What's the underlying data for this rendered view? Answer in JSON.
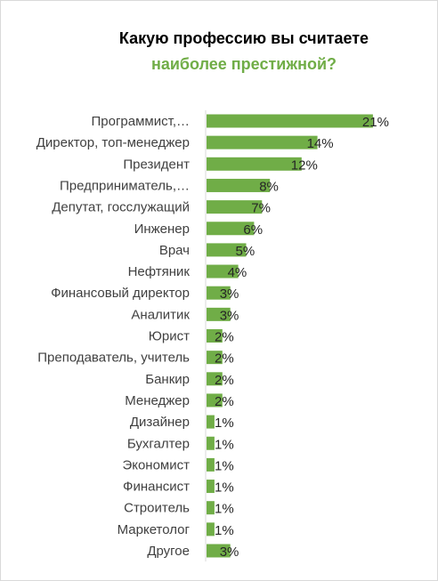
{
  "title": {
    "line1": "Какую профессию вы считаете",
    "line2": "наиболее престижной?"
  },
  "colors": {
    "bar": "#70ad47",
    "title_accent": "#70ad47"
  },
  "chart_data": {
    "type": "bar",
    "orientation": "horizontal",
    "title": "Какую профессию вы считаете наиболее престижной?",
    "categories": [
      "Программист,…",
      "Директор, топ-менеджер",
      "Президент",
      "Предприниматель,…",
      "Депутат, госслужащий",
      "Инженер",
      "Врач",
      "Нефтяник",
      "Финансовый директор",
      "Аналитик",
      "Юрист",
      "Преподаватель, учитель",
      "Банкир",
      "Менеджер",
      "Дизайнер",
      "Бухгалтер",
      "Экономист",
      "Финансист",
      "Строитель",
      "Маркетолог",
      "Другое"
    ],
    "series": [
      {
        "values": [
          21,
          14,
          12,
          8,
          7,
          6,
          5,
          4,
          3,
          3,
          2,
          2,
          2,
          2,
          1,
          1,
          1,
          1,
          1,
          1,
          3
        ],
        "labels": [
          "21%",
          "14%",
          "12%",
          "8%",
          "7%",
          "6%",
          "5%",
          "4%",
          "3%",
          "3%",
          "2%",
          "2%",
          "2%",
          "2%",
          "1%",
          "1%",
          "1%",
          "1%",
          "1%",
          "1%",
          "3%"
        ]
      }
    ],
    "unit": "%",
    "grid": false,
    "legend": "none"
  }
}
